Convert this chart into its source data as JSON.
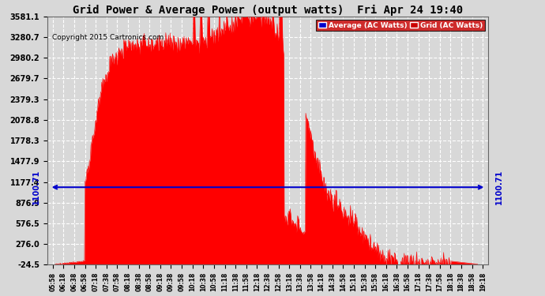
{
  "title": "Grid Power & Average Power (output watts)  Fri Apr 24 19:40",
  "copyright": "Copyright 2015 Cartronics.com",
  "yticks": [
    -24.5,
    276.0,
    576.5,
    876.9,
    1177.4,
    1477.9,
    1778.3,
    2078.8,
    2379.3,
    2679.7,
    2980.2,
    3280.7,
    3581.1
  ],
  "ymin": -24.5,
  "ymax": 3581.1,
  "average_line_value": 1100.71,
  "average_line_label": "1100.71",
  "bg_color": "#d8d8d8",
  "plot_bg_color": "#d8d8d8",
  "grid_color": "#ffffff",
  "fill_color": "#ff0000",
  "line_color": "#ff0000",
  "avg_line_color": "#0000cc",
  "legend_avg_bg": "#0000cc",
  "legend_grid_bg": "#cc0000",
  "title_color": "#000000",
  "copyright_color": "#000000",
  "xtick_labels": [
    "05:58",
    "06:18",
    "06:38",
    "06:58",
    "07:18",
    "07:38",
    "07:58",
    "08:18",
    "08:38",
    "08:58",
    "09:18",
    "09:38",
    "09:58",
    "10:18",
    "10:38",
    "10:58",
    "11:18",
    "11:38",
    "11:58",
    "12:18",
    "12:38",
    "12:58",
    "13:18",
    "13:38",
    "13:58",
    "14:18",
    "14:38",
    "14:58",
    "15:18",
    "15:38",
    "15:58",
    "16:18",
    "16:38",
    "16:58",
    "17:18",
    "17:38",
    "17:58",
    "18:18",
    "18:38",
    "18:58",
    "19:18"
  ]
}
